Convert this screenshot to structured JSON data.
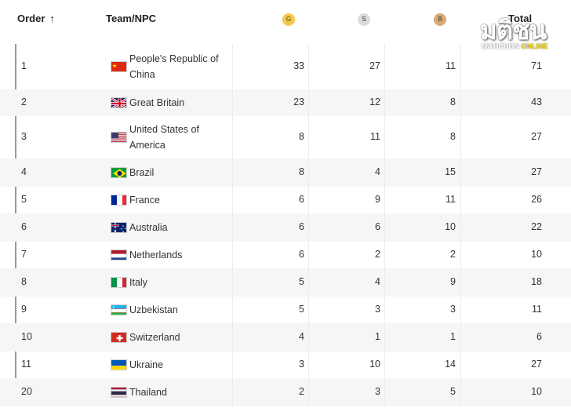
{
  "header": {
    "order_label": "Order",
    "sort_arrow": "↑",
    "team_label": "Team/NPC",
    "gold_label": "G",
    "silver_label": "S",
    "bronze_label": "B",
    "total_label": "Total"
  },
  "watermark": {
    "main": "มติชน",
    "sub_prefix": "MATICHON",
    "sub_suffix": "ONLINE"
  },
  "colors": {
    "gold": "#f4c94b",
    "silver": "#dcdcdc",
    "bronze": "#d9a877"
  },
  "rows": [
    {
      "order": "1",
      "team": "People's Republic of China",
      "flag": "china-flag-icon",
      "gold": "33",
      "silver": "27",
      "bronze": "11",
      "total": "71"
    },
    {
      "order": "2",
      "team": "Great Britain",
      "flag": "great-britain-flag-icon",
      "gold": "23",
      "silver": "12",
      "bronze": "8",
      "total": "43"
    },
    {
      "order": "3",
      "team": "United States of America",
      "flag": "usa-flag-icon",
      "gold": "8",
      "silver": "11",
      "bronze": "8",
      "total": "27"
    },
    {
      "order": "4",
      "team": "Brazil",
      "flag": "brazil-flag-icon",
      "gold": "8",
      "silver": "4",
      "bronze": "15",
      "total": "27"
    },
    {
      "order": "5",
      "team": "France",
      "flag": "france-flag-icon",
      "gold": "6",
      "silver": "9",
      "bronze": "11",
      "total": "26"
    },
    {
      "order": "6",
      "team": "Australia",
      "flag": "australia-flag-icon",
      "gold": "6",
      "silver": "6",
      "bronze": "10",
      "total": "22"
    },
    {
      "order": "7",
      "team": "Netherlands",
      "flag": "netherlands-flag-icon",
      "gold": "6",
      "silver": "2",
      "bronze": "2",
      "total": "10"
    },
    {
      "order": "8",
      "team": "Italy",
      "flag": "italy-flag-icon",
      "gold": "5",
      "silver": "4",
      "bronze": "9",
      "total": "18"
    },
    {
      "order": "9",
      "team": "Uzbekistan",
      "flag": "uzbekistan-flag-icon",
      "gold": "5",
      "silver": "3",
      "bronze": "3",
      "total": "11"
    },
    {
      "order": "10",
      "team": "Switzerland",
      "flag": "switzerland-flag-icon",
      "gold": "4",
      "silver": "1",
      "bronze": "1",
      "total": "6"
    },
    {
      "order": "11",
      "team": "Ukraine",
      "flag": "ukraine-flag-icon",
      "gold": "3",
      "silver": "10",
      "bronze": "14",
      "total": "27"
    },
    {
      "order": "20",
      "team": "Thailand",
      "flag": "thailand-flag-icon",
      "gold": "2",
      "silver": "3",
      "bronze": "5",
      "total": "10"
    }
  ]
}
